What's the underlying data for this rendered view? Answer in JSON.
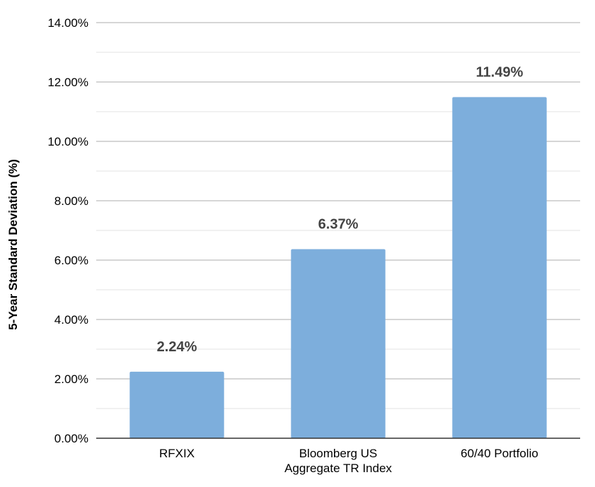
{
  "chart_data": {
    "type": "bar",
    "categories": [
      "RFXIX",
      "Bloomberg US\nAggregate TR Index",
      "60/40 Portfolio"
    ],
    "values": [
      2.24,
      6.37,
      11.49
    ],
    "data_labels": [
      "2.24%",
      "6.37%",
      "11.49%"
    ],
    "title": "",
    "xlabel": "",
    "ylabel": "5-Year Standard Deviation (%)",
    "ylim": [
      0,
      14
    ],
    "yticks": [
      0,
      2,
      4,
      6,
      8,
      10,
      12,
      14
    ],
    "ytick_labels": [
      "0.00%",
      "2.00%",
      "4.00%",
      "6.00%",
      "8.00%",
      "10.00%",
      "12.00%",
      "14.00%"
    ],
    "grid": true,
    "minor_grid": true,
    "legend": "none",
    "bar_color": "#7daedc",
    "label_color": "#444444",
    "gridline_color": "#c8c8c8",
    "axis_color": "#333333"
  }
}
